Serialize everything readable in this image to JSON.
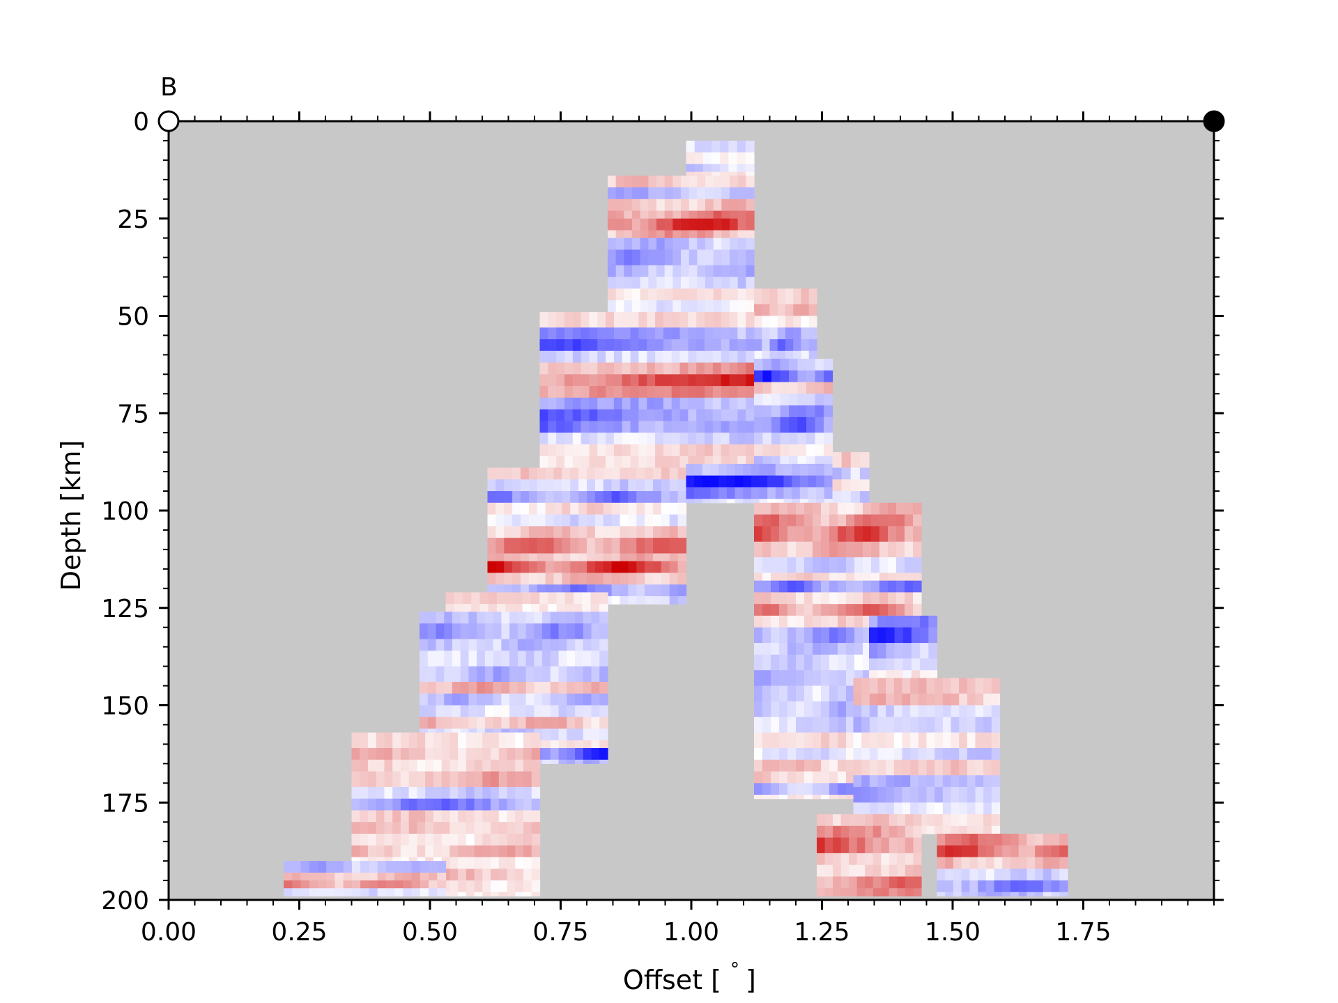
{
  "chart_data": {
    "type": "heatmap",
    "title": "",
    "panel_label": "B",
    "xlabel_text": "Offset [",
    "xlabel_degree": "°",
    "xlabel_close": "]",
    "ylabel": "Depth [km]",
    "xlim": [
      0.0,
      2.0
    ],
    "ylim": [
      200,
      0
    ],
    "x_ticks": [
      0.0,
      0.25,
      0.5,
      0.75,
      1.0,
      1.25,
      1.5,
      1.75
    ],
    "x_tick_labels": [
      "0.00",
      "0.25",
      "0.50",
      "0.75",
      "1.00",
      "1.25",
      "1.50",
      "1.75"
    ],
    "y_ticks": [
      0,
      25,
      50,
      75,
      100,
      125,
      150,
      175,
      200
    ],
    "y_tick_labels": [
      "0",
      "25",
      "50",
      "75",
      "100",
      "125",
      "150",
      "175",
      "200"
    ],
    "grid": false,
    "colormap": "blue-white-red (seismic)",
    "colors": {
      "background": "#c8c8c8",
      "negative": "#0000ff",
      "positive": "#cc0000",
      "neutral": "#ffffff"
    },
    "endpoints": [
      {
        "x": 0.0,
        "y": 0,
        "style": "open-circle"
      },
      {
        "x": 2.0,
        "y": 0,
        "style": "filled-circle"
      }
    ],
    "blocks": [
      {
        "x0": 0.99,
        "x1": 1.12,
        "y0": 5,
        "y1": 15,
        "bands": [
          [
            5,
            -0.15
          ],
          [
            8,
            0.05
          ],
          [
            11,
            -0.2
          ],
          [
            13,
            0.2
          ]
        ]
      },
      {
        "x0": 0.84,
        "x1": 1.12,
        "y0": 14,
        "y1": 49,
        "bands": [
          [
            14,
            0.25
          ],
          [
            17,
            -0.35
          ],
          [
            20,
            0.3
          ],
          [
            23,
            0.55
          ],
          [
            25,
            0.9
          ],
          [
            28,
            0.4
          ],
          [
            30,
            -0.3
          ],
          [
            33,
            -0.45
          ],
          [
            37,
            -0.3
          ],
          [
            40,
            -0.2
          ],
          [
            43,
            0.15
          ],
          [
            46,
            -0.1
          ]
        ]
      },
      {
        "x0": 1.12,
        "x1": 1.24,
        "y0": 43,
        "y1": 61,
        "bands": [
          [
            43,
            0.2
          ],
          [
            47,
            0.35
          ],
          [
            50,
            0.1
          ],
          [
            53,
            -0.4
          ],
          [
            56,
            -0.6
          ],
          [
            59,
            -0.2
          ]
        ]
      },
      {
        "x0": 0.71,
        "x1": 1.12,
        "y0": 49,
        "y1": 89,
        "bands": [
          [
            49,
            0.15
          ],
          [
            53,
            -0.45
          ],
          [
            56,
            -0.75
          ],
          [
            59,
            -0.3
          ],
          [
            62,
            0.5
          ],
          [
            65,
            0.8
          ],
          [
            68,
            0.45
          ],
          [
            71,
            -0.35
          ],
          [
            74,
            -0.6
          ],
          [
            77,
            -0.7
          ],
          [
            80,
            -0.25
          ],
          [
            83,
            0.2
          ],
          [
            86,
            0.15
          ]
        ]
      },
      {
        "x0": 1.12,
        "x1": 1.27,
        "y0": 61,
        "y1": 90,
        "bands": [
          [
            61,
            -0.3
          ],
          [
            64,
            -0.8
          ],
          [
            67,
            0.25
          ],
          [
            70,
            -0.2
          ],
          [
            73,
            -0.5
          ],
          [
            76,
            -0.65
          ],
          [
            80,
            -0.2
          ],
          [
            83,
            0.15
          ],
          [
            86,
            -0.2
          ]
        ]
      },
      {
        "x0": 0.61,
        "x1": 0.99,
        "y0": 89,
        "y1": 124,
        "bands": [
          [
            89,
            0.2
          ],
          [
            92,
            -0.2
          ],
          [
            95,
            -0.55
          ],
          [
            98,
            0.15
          ],
          [
            101,
            -0.15
          ],
          [
            104,
            0.25
          ],
          [
            107,
            0.6
          ],
          [
            111,
            0.3
          ],
          [
            113,
            0.9
          ],
          [
            116,
            0.35
          ],
          [
            119,
            -0.5
          ],
          [
            122,
            -0.2
          ]
        ]
      },
      {
        "x0": 0.99,
        "x1": 1.27,
        "y0": 88,
        "y1": 98,
        "bands": [
          [
            88,
            -0.3
          ],
          [
            91,
            -0.85
          ],
          [
            94,
            -0.6
          ],
          [
            97,
            -0.2
          ]
        ]
      },
      {
        "x0": 1.27,
        "x1": 1.34,
        "y0": 85,
        "y1": 103,
        "bands": [
          [
            85,
            0.2
          ],
          [
            89,
            -0.3
          ],
          [
            92,
            0.15
          ],
          [
            95,
            -0.2
          ],
          [
            99,
            0.1
          ]
        ]
      },
      {
        "x0": 1.12,
        "x1": 1.44,
        "y0": 98,
        "y1": 174,
        "bands": [
          [
            98,
            0.3
          ],
          [
            101,
            0.55
          ],
          [
            104,
            0.7
          ],
          [
            108,
            0.4
          ],
          [
            112,
            -0.2
          ],
          [
            116,
            0.15
          ],
          [
            118,
            -0.55
          ],
          [
            121,
            0.2
          ],
          [
            124,
            0.55
          ],
          [
            127,
            0.2
          ],
          [
            130,
            -0.45
          ],
          [
            134,
            -0.3
          ],
          [
            137,
            -0.2
          ],
          [
            141,
            -0.35
          ],
          [
            145,
            -0.25
          ],
          [
            149,
            -0.3
          ],
          [
            153,
            -0.2
          ],
          [
            157,
            0.15
          ],
          [
            161,
            -0.15
          ],
          [
            164,
            0.3
          ],
          [
            167,
            0.2
          ],
          [
            170,
            -0.45
          ],
          [
            173,
            0.1
          ]
        ]
      },
      {
        "x0": 1.34,
        "x1": 1.47,
        "y0": 127,
        "y1": 143,
        "bands": [
          [
            127,
            -0.5
          ],
          [
            130,
            -0.75
          ],
          [
            134,
            -0.4
          ],
          [
            138,
            -0.2
          ],
          [
            141,
            0.1
          ]
        ]
      },
      {
        "x0": 0.53,
        "x1": 0.84,
        "y0": 121,
        "y1": 126,
        "bands": [
          [
            121,
            0.2
          ],
          [
            124,
            0.1
          ]
        ]
      },
      {
        "x0": 0.48,
        "x1": 0.84,
        "y0": 126,
        "y1": 165,
        "bands": [
          [
            126,
            -0.25
          ],
          [
            129,
            -0.45
          ],
          [
            133,
            -0.3
          ],
          [
            136,
            -0.2
          ],
          [
            140,
            -0.35
          ],
          [
            144,
            0.35
          ],
          [
            147,
            -0.3
          ],
          [
            150,
            -0.15
          ],
          [
            153,
            0.3
          ],
          [
            156,
            -0.25
          ],
          [
            159,
            0.15
          ],
          [
            161,
            -0.85
          ],
          [
            164,
            -0.3
          ]
        ]
      },
      {
        "x0": 1.31,
        "x1": 1.59,
        "y0": 143,
        "y1": 183,
        "bands": [
          [
            143,
            0.25
          ],
          [
            147,
            0.3
          ],
          [
            150,
            -0.2
          ],
          [
            153,
            -0.35
          ],
          [
            157,
            0.15
          ],
          [
            161,
            -0.2
          ],
          [
            164,
            0.2
          ],
          [
            168,
            -0.3
          ],
          [
            171,
            -0.35
          ],
          [
            175,
            -0.2
          ],
          [
            178,
            0.15
          ],
          [
            181,
            0.1
          ]
        ]
      },
      {
        "x0": 0.35,
        "x1": 0.71,
        "y0": 157,
        "y1": 199,
        "bands": [
          [
            157,
            0.15
          ],
          [
            161,
            0.3
          ],
          [
            164,
            0.2
          ],
          [
            167,
            0.35
          ],
          [
            171,
            -0.2
          ],
          [
            174,
            -0.55
          ],
          [
            177,
            0.2
          ],
          [
            180,
            0.25
          ],
          [
            183,
            0.15
          ],
          [
            186,
            0.3
          ],
          [
            189,
            0.1
          ],
          [
            192,
            0.25
          ],
          [
            195,
            0.15
          ],
          [
            198,
            0.1
          ]
        ]
      },
      {
        "x0": 0.22,
        "x1": 0.53,
        "y0": 190,
        "y1": 199,
        "bands": [
          [
            190,
            -0.35
          ],
          [
            193,
            0.3
          ],
          [
            195,
            0.5
          ],
          [
            197,
            -0.15
          ]
        ]
      },
      {
        "x0": 1.24,
        "x1": 1.44,
        "y0": 178,
        "y1": 199,
        "bands": [
          [
            178,
            0.2
          ],
          [
            181,
            0.45
          ],
          [
            184,
            0.7
          ],
          [
            188,
            0.35
          ],
          [
            191,
            0.25
          ],
          [
            194,
            0.55
          ],
          [
            197,
            0.45
          ]
        ]
      },
      {
        "x0": 1.47,
        "x1": 1.72,
        "y0": 183,
        "y1": 199,
        "bands": [
          [
            183,
            0.55
          ],
          [
            186,
            0.75
          ],
          [
            189,
            0.3
          ],
          [
            192,
            -0.2
          ],
          [
            195,
            -0.55
          ],
          [
            198,
            -0.3
          ]
        ]
      }
    ]
  }
}
